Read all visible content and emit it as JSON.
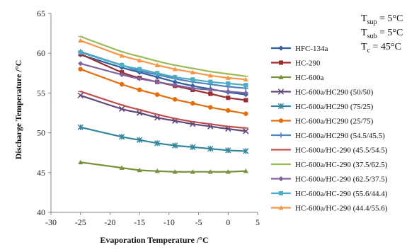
{
  "chart_data": {
    "type": "line",
    "title": "",
    "xlabel": "Evaporation Temperature /°C",
    "ylabel": "Discharge Temperature /°C",
    "xlim": [
      -30,
      5
    ],
    "ylim": [
      40,
      65
    ],
    "xticks": [
      "-30",
      "-25",
      "-20",
      "-15",
      "-10",
      "-5",
      "0",
      "5"
    ],
    "yticks": [
      "40",
      "45",
      "50",
      "55",
      "60",
      "65"
    ],
    "grid": false,
    "legend_position": "right",
    "x": [
      -25,
      -18,
      -15,
      -12,
      -9,
      -6,
      -3,
      0,
      3
    ],
    "conditions": [
      {
        "base": "T",
        "sub": "sup",
        "text": " = 5°C"
      },
      {
        "base": "T",
        "sub": "sub",
        "text": " = 5°C"
      },
      {
        "base": "T",
        "sub": "c",
        "text": " = 45°C"
      }
    ],
    "series": [
      {
        "name": "HFC-134a",
        "color": "#2e5f9e",
        "marker": "diamond",
        "values": [
          59.8,
          58.2,
          57.6,
          57.0,
          56.4,
          55.9,
          55.5,
          55.1,
          54.8
        ]
      },
      {
        "name": "HC-290",
        "color": "#9b2d2d",
        "marker": "square",
        "values": [
          59.9,
          57.6,
          56.9,
          56.4,
          55.9,
          55.4,
          54.9,
          54.4,
          54.1
        ]
      },
      {
        "name": "HC-600a",
        "color": "#77923c",
        "marker": "triangle",
        "values": [
          46.3,
          45.6,
          45.3,
          45.2,
          45.1,
          45.1,
          45.1,
          45.1,
          45.2
        ]
      },
      {
        "name": "HC-600a/HC290 (50/50)",
        "color": "#60497a",
        "marker": "x",
        "values": [
          54.7,
          53.0,
          52.5,
          51.9,
          51.5,
          51.1,
          50.8,
          50.5,
          50.2
        ]
      },
      {
        "name": "HC-600a/HC290 (75/25)",
        "color": "#31859c",
        "marker": "star",
        "values": [
          50.7,
          49.5,
          49.1,
          48.7,
          48.4,
          48.2,
          48.0,
          47.8,
          47.7
        ]
      },
      {
        "name": "HC-600a/HC290 (25/75)",
        "color": "#e46c0a",
        "marker": "circle",
        "values": [
          58.0,
          56.1,
          55.4,
          54.8,
          54.2,
          53.7,
          53.2,
          52.8,
          52.4
        ]
      },
      {
        "name": "HC-600a/HC290 (54.5/45.5)",
        "color": "#4f81bd",
        "marker": "plus",
        "values": [
          60.2,
          58.5,
          57.8,
          57.3,
          56.8,
          56.4,
          56.1,
          55.8,
          55.6
        ]
      },
      {
        "name": "HC-600a/HC-290 (45.5/54.5)",
        "color": "#c0504d",
        "marker": "dash",
        "values": [
          55.2,
          53.5,
          52.9,
          52.3,
          51.8,
          51.4,
          51.1,
          50.8,
          50.6
        ]
      },
      {
        "name": "HC-600a/HC-290 (37.5/62.5)",
        "color": "#9bbb59",
        "marker": "dash",
        "values": [
          62.1,
          60.2,
          59.6,
          59.0,
          58.5,
          58.1,
          57.7,
          57.4,
          57.1
        ]
      },
      {
        "name": "HC-600a/HC-290 (62.5/37.5)",
        "color": "#8064a2",
        "marker": "diamond",
        "values": [
          58.7,
          57.3,
          56.8,
          56.4,
          56.0,
          55.6,
          55.4,
          55.2,
          55.0
        ]
      },
      {
        "name": "HC-600a/HC-290 (55.6/44.4)",
        "color": "#4bacc6",
        "marker": "square",
        "values": [
          60.1,
          58.5,
          58.0,
          57.5,
          57.0,
          56.7,
          56.4,
          56.2,
          56.0
        ]
      },
      {
        "name": "HC-600a/HC-290 (44.4/55.6)",
        "color": "#f79646",
        "marker": "triangle",
        "values": [
          61.6,
          59.7,
          59.1,
          58.5,
          58.0,
          57.6,
          57.2,
          56.9,
          56.7
        ]
      }
    ]
  }
}
